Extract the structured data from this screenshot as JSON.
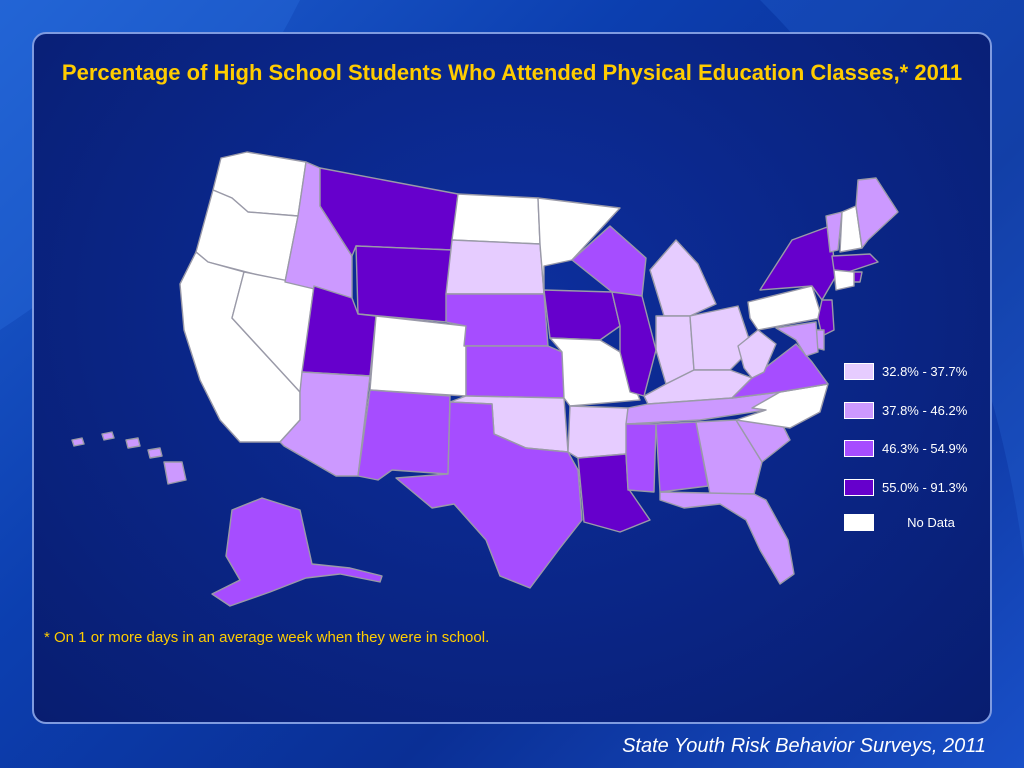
{
  "title": "Percentage of High School Students Who Attended Physical Education Classes,* 2011",
  "footnote": "* On 1 or more days in an average week when they were in school.",
  "source": "State Youth Risk Behavior Surveys, 2011",
  "colors": {
    "bin1": "#e6ccff",
    "bin2": "#cc99ff",
    "bin3": "#a64dff",
    "bin4": "#6600cc",
    "nodata": "#ffffff",
    "border": "#9a9aa8"
  },
  "legend": [
    {
      "label": "32.8% - 37.7%",
      "color": "#e6ccff"
    },
    {
      "label": "37.8% - 46.2%",
      "color": "#cc99ff"
    },
    {
      "label": "46.3% - 54.9%",
      "color": "#a64dff"
    },
    {
      "label": "55.0% - 91.3%",
      "color": "#6600cc"
    },
    {
      "label": "No Data",
      "color": "#ffffff"
    }
  ],
  "states": {
    "WA": "nodata",
    "OR": "nodata",
    "CA": "nodata",
    "NV": "nodata",
    "ID": "bin2",
    "MT": "bin4",
    "WY": "bin4",
    "UT": "bin4",
    "CO": "nodata",
    "AZ": "bin2",
    "NM": "bin3",
    "ND": "nodata",
    "SD": "bin1",
    "NE": "bin3",
    "KS": "bin3",
    "OK": "bin1",
    "TX": "bin3",
    "MN": "nodata",
    "IA": "bin4",
    "MO": "nodata",
    "AR": "bin1",
    "LA": "bin4",
    "WI": "bin3",
    "IL": "bin4",
    "MI": "bin1",
    "IN": "bin1",
    "OH": "bin1",
    "KY": "bin1",
    "TN": "bin2",
    "MS": "bin3",
    "AL": "bin3",
    "GA": "bin2",
    "FL": "bin2",
    "SC": "bin2",
    "NC": "nodata",
    "VA": "bin3",
    "WV": "bin1",
    "PA": "nodata",
    "NY": "bin4",
    "VT": "bin2",
    "NH": "nodata",
    "ME": "bin2",
    "MA": "bin4",
    "RI": "bin4",
    "CT": "nodata",
    "NJ": "bin4",
    "DE": "bin2",
    "MD": "bin2",
    "AK": "bin3",
    "HI": "bin2"
  }
}
